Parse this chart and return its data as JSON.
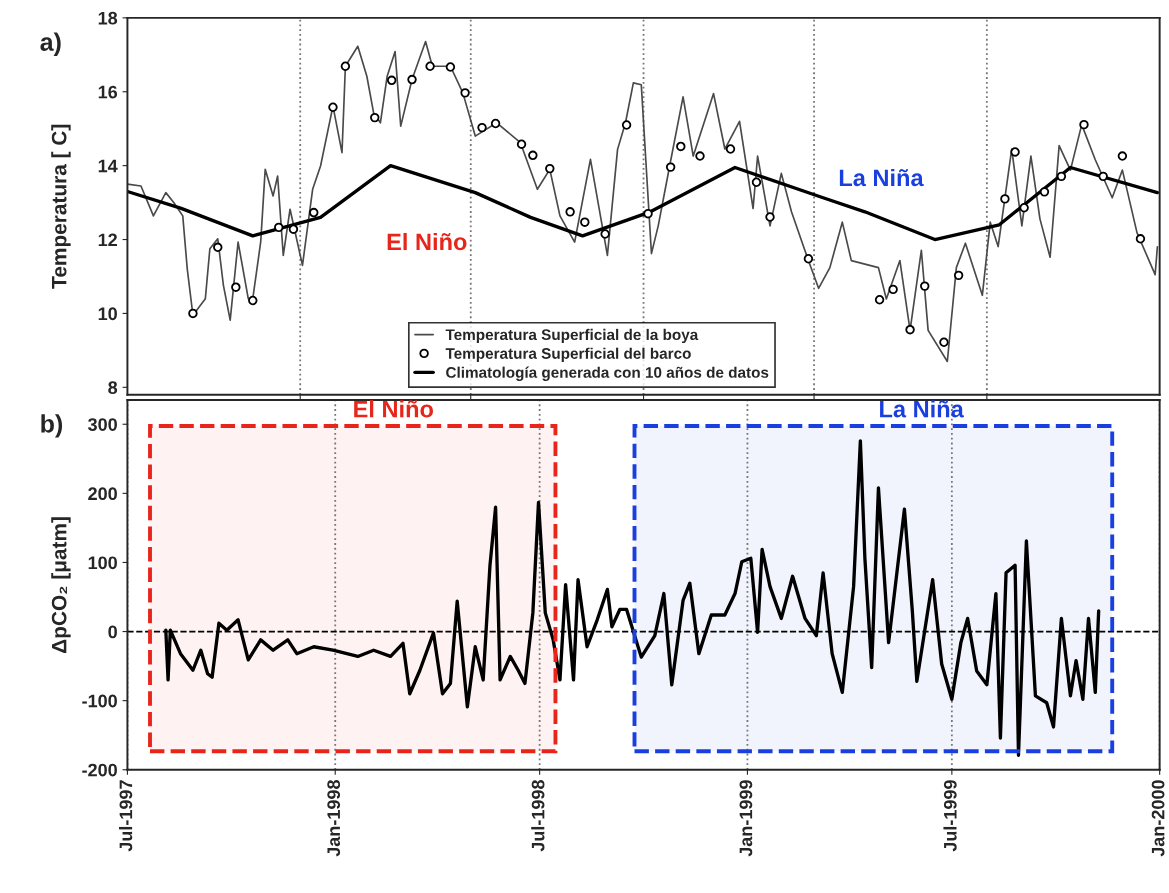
{
  "chart_data": [
    {
      "type": "line",
      "ylabel": "Temperatura [ C]",
      "annotations": [
        "a)",
        "El Niño",
        "La Niña"
      ],
      "xlim": [
        "1997-07-01",
        "2000-01-01"
      ],
      "ylim": [
        7.8,
        18
      ],
      "yticks": [
        8,
        10,
        12,
        14,
        16,
        18
      ],
      "xticks": [
        {
          "value": "1997-12-01",
          "label": null
        },
        {
          "value": "1998-05-01",
          "label": null
        },
        {
          "value": "1998-10-01",
          "label": null
        },
        {
          "value": "1999-03-01",
          "label": null
        },
        {
          "value": "1999-08-01",
          "label": null
        }
      ],
      "tick_labels": "y",
      "grid": "x",
      "legend": "bottom",
      "series": [
        {
          "name": "Temperatura Superficial de la boya",
          "color": "#4a4a4a",
          "x": [
            "1997-07-01",
            "1997-07-13",
            "1997-07-24",
            "1997-08-04",
            "1997-08-11",
            "1997-08-19",
            "1997-08-23",
            "1997-08-28",
            "1997-09-08",
            "1997-09-12",
            "1997-09-19",
            "1997-09-24",
            "1997-09-30",
            "1997-10-07",
            "1997-10-16",
            "1997-10-20",
            "1997-10-27",
            "1997-10-31",
            "1997-11-07",
            "1997-11-11",
            "1997-11-16",
            "1997-11-22",
            "1997-12-03",
            "1997-12-12",
            "1997-12-19",
            "1997-12-30",
            "1998-01-07",
            "1998-01-10",
            "1998-01-21",
            "1998-01-29",
            "1998-02-04",
            "1998-02-10",
            "1998-02-16",
            "1998-02-23",
            "1998-02-28",
            "1998-03-10",
            "1998-03-22",
            "1998-03-28",
            "1998-04-13",
            "1998-04-24",
            "1998-05-05",
            "1998-05-24",
            "1998-06-14",
            "1998-06-29",
            "1998-07-10",
            "1998-07-19",
            "1998-08-01",
            "1998-08-15",
            "1998-08-30",
            "1998-09-08",
            "1998-09-15",
            "1998-09-22",
            "1998-09-29",
            "1998-10-08",
            "1998-10-14",
            "1998-10-24",
            "1998-11-05",
            "1998-11-14",
            "1998-12-02",
            "1998-12-12",
            "1998-12-25",
            "1999-01-06",
            "1999-01-10",
            "1999-01-21",
            "1999-01-31",
            "1999-02-09",
            "1999-02-24",
            "1999-03-05",
            "1999-03-15",
            "1999-03-26",
            "1999-04-03",
            "1999-04-27",
            "1999-05-04",
            "1999-05-16",
            "1999-05-25",
            "1999-06-04",
            "1999-06-10",
            "1999-06-27",
            "1999-07-05",
            "1999-07-13",
            "1999-07-28",
            "1999-08-04",
            "1999-08-11",
            "1999-08-23",
            "1999-09-01",
            "1999-09-09",
            "1999-09-17",
            "1999-09-26",
            "1999-10-04",
            "1999-10-14",
            "1999-10-24",
            "1999-11-05",
            "1999-11-20",
            "1999-11-29",
            "1999-12-12",
            "1999-12-28",
            "1999-12-30"
          ],
          "values": [
            13.5,
            13.45,
            12.64,
            13.27,
            13.0,
            12.64,
            11.2,
            9.95,
            10.4,
            11.75,
            12.02,
            10.76,
            9.82,
            11.93,
            10.4,
            10.4,
            11.93,
            13.9,
            13.18,
            13.72,
            11.57,
            12.82,
            11.3,
            13.36,
            13.99,
            15.61,
            14.35,
            16.69,
            17.23,
            16.42,
            15.43,
            15.16,
            16.42,
            17.09,
            15.07,
            16.33,
            17.36,
            16.69,
            16.69,
            15.97,
            14.8,
            15.16,
            14.62,
            13.36,
            13.9,
            12.64,
            11.93,
            14.17,
            11.57,
            14.44,
            15.16,
            16.24,
            16.19,
            11.62,
            12.37,
            13.97,
            15.86,
            14.26,
            15.95,
            14.45,
            15.2,
            12.84,
            14.26,
            12.37,
            13.79,
            12.75,
            11.43,
            10.68,
            11.24,
            12.47,
            11.43,
            11.24,
            10.39,
            11.43,
            9.54,
            11.71,
            9.54,
            8.7,
            11.24,
            11.9,
            10.49,
            12.47,
            11.81,
            14.45,
            12.37,
            14.26,
            12.56,
            11.52,
            14.54,
            13.88,
            15.11,
            14.16,
            13.13,
            13.88,
            12.18,
            11.05,
            11.8
          ]
        },
        {
          "name": "Temperatura Superficial del barco",
          "type": "scatter",
          "marker": "circle",
          "color": "#000000",
          "x": [
            "1997-08-28",
            "1997-09-19",
            "1997-10-05",
            "1997-10-20",
            "1997-11-12",
            "1997-11-25",
            "1997-12-13",
            "1997-12-30",
            "1998-01-10",
            "1998-02-05",
            "1998-02-20",
            "1998-03-10",
            "1998-03-26",
            "1998-04-13",
            "1998-04-26",
            "1998-05-11",
            "1998-05-23",
            "1998-06-15",
            "1998-06-25",
            "1998-07-10",
            "1998-07-28",
            "1998-08-10",
            "1998-08-28",
            "1998-09-16",
            "1998-10-05",
            "1998-10-25",
            "1998-11-03",
            "1998-11-20",
            "1998-12-17",
            "1999-01-09",
            "1999-01-21",
            "1999-02-24",
            "1999-04-28",
            "1999-05-10",
            "1999-05-25",
            "1999-06-07",
            "1999-06-24",
            "1999-07-07",
            "1999-08-17",
            "1999-08-26",
            "1999-09-03",
            "1999-09-21",
            "1999-10-06",
            "1999-10-26",
            "1999-11-12",
            "1999-11-29",
            "1999-12-15"
          ],
          "values": [
            10.0,
            11.79,
            10.71,
            10.35,
            12.33,
            12.28,
            12.73,
            15.58,
            16.69,
            15.3,
            16.31,
            16.33,
            16.69,
            16.67,
            15.97,
            15.03,
            15.14,
            14.58,
            14.28,
            13.92,
            12.75,
            12.47,
            12.15,
            15.1,
            12.7,
            13.96,
            14.52,
            14.26,
            14.45,
            13.55,
            12.61,
            11.48,
            10.37,
            10.65,
            9.56,
            10.74,
            9.22,
            11.03,
            13.1,
            14.37,
            12.86,
            13.29,
            13.71,
            15.11,
            13.71,
            14.26,
            12.02
          ]
        },
        {
          "name": "Climatología generada con 10 años de datos",
          "color": "#000000",
          "x": [
            "1997-07-01",
            "1997-08-17",
            "1997-10-20",
            "1997-12-19",
            "1998-02-19",
            "1998-05-05",
            "1998-06-23",
            "1998-08-08",
            "1998-10-07",
            "1998-12-21",
            "1999-03-09",
            "1999-04-15",
            "1999-06-16",
            "1999-08-12",
            "1999-10-14",
            "1999-12-30"
          ],
          "values": [
            13.3,
            12.85,
            12.1,
            12.6,
            14.0,
            13.27,
            12.6,
            12.1,
            12.75,
            13.95,
            13.13,
            12.75,
            12.0,
            12.4,
            13.95,
            13.27
          ]
        }
      ]
    },
    {
      "type": "line",
      "ylabel": "ΔpCO₂ [μatm]",
      "annotations": [
        "b)"
      ],
      "xlim": [
        "1997-07-01",
        "2000-01-01"
      ],
      "ylim": [
        -200,
        335
      ],
      "yticks": [
        -200,
        -100,
        0,
        100,
        200,
        300
      ],
      "xticks": [
        {
          "value": "1997-07-01",
          "label": "Jul-1997"
        },
        {
          "value": "1998-01-01",
          "label": "Jan-1998"
        },
        {
          "value": "1998-07-01",
          "label": "Jul-1998"
        },
        {
          "value": "1999-01-01",
          "label": "Jan-1999"
        },
        {
          "value": "1999-07-01",
          "label": "Jul-1999"
        },
        {
          "value": "2000-01-01",
          "label": "Jan-2000"
        }
      ],
      "grid": "x",
      "ref_lines": [
        {
          "axis": "y",
          "value": 0,
          "color": "#000000",
          "line_style": "dashed"
        }
      ],
      "bands": [
        {
          "axis": "x",
          "from": "1997-07-21",
          "to": "1998-07-15",
          "label": "El Niño",
          "color": "#e8251b"
        },
        {
          "axis": "x",
          "from": "1998-09-23",
          "to": "1999-11-20",
          "label": "La Niña",
          "color": "#1a3fe0"
        }
      ],
      "series": [
        {
          "color": "#000000",
          "x": [
            "1997-08-04",
            "1997-08-06",
            "1997-08-08",
            "1997-08-17",
            "1997-08-28",
            "1997-09-04",
            "1997-09-10",
            "1997-09-14",
            "1997-09-20",
            "1997-09-27",
            "1997-10-07",
            "1997-10-16",
            "1997-10-27",
            "1997-11-07",
            "1997-11-20",
            "1997-11-28",
            "1997-12-13",
            "1997-12-30",
            "1998-01-21",
            "1998-02-04",
            "1998-02-19",
            "1998-03-02",
            "1998-03-08",
            "1998-03-17",
            "1998-03-29",
            "1998-04-06",
            "1998-04-13",
            "1998-04-19",
            "1998-04-28",
            "1998-05-05",
            "1998-05-12",
            "1998-05-18",
            "1998-05-23",
            "1998-05-27",
            "1998-06-05",
            "1998-06-12",
            "1998-06-18",
            "1998-06-25",
            "1998-06-30",
            "1998-07-06",
            "1998-07-13",
            "1998-07-19",
            "1998-07-24",
            "1998-07-31",
            "1998-08-04",
            "1998-08-12",
            "1998-08-21",
            "1998-08-30",
            "1998-09-03",
            "1998-09-10",
            "1998-09-16",
            "1998-09-29",
            "1998-10-11",
            "1998-10-19",
            "1998-10-26",
            "1998-11-05",
            "1998-11-11",
            "1998-11-19",
            "1998-11-30",
            "1998-12-12",
            "1998-12-21",
            "1998-12-27",
            "1999-01-04",
            "1999-01-10",
            "1999-01-14",
            "1999-01-21",
            "1999-01-31",
            "1999-02-10",
            "1999-02-21",
            "1999-03-03",
            "1999-03-09",
            "1999-03-17",
            "1999-03-26",
            "1999-04-05",
            "1999-04-11",
            "1999-04-15",
            "1999-04-21",
            "1999-04-27",
            "1999-05-06",
            "1999-05-20",
            "1999-05-27",
            "1999-05-31",
            "1999-06-14",
            "1999-06-22",
            "1999-07-01",
            "1999-07-09",
            "1999-07-15",
            "1999-07-23",
            "1999-08-01",
            "1999-08-09",
            "1999-08-13",
            "1999-08-18",
            "1999-08-26",
            "1999-08-29",
            "1999-09-05",
            "1999-09-13",
            "1999-09-23",
            "1999-09-29",
            "1999-10-06",
            "1999-10-14",
            "1999-10-19",
            "1999-10-25",
            "1999-10-30",
            "1999-11-05",
            "1999-11-08"
          ],
          "values": [
            2,
            -70,
            2,
            -32,
            -56,
            -27,
            -61,
            -66,
            12,
            2,
            17,
            -41,
            -12,
            -27,
            -12,
            -32,
            -22,
            -27,
            -36,
            -27,
            -36,
            -17,
            -90,
            -56,
            -2,
            -90,
            -75,
            44,
            -109,
            -22,
            -70,
            95,
            180,
            -70,
            -36,
            -56,
            -75,
            27,
            187,
            27,
            -12,
            -70,
            68,
            -70,
            75,
            -22,
            17,
            61,
            7,
            32,
            32,
            -37,
            -6,
            55,
            -77,
            45,
            70,
            -32,
            24,
            24,
            55,
            101,
            106,
            -1,
            119,
            65,
            19,
            80,
            19,
            -6,
            85,
            -32,
            -88,
            65,
            276,
            106,
            -52,
            208,
            -16,
            177,
            30,
            -72,
            75,
            -47,
            -98,
            -16,
            19,
            -57,
            -77,
            55,
            -154,
            85,
            96,
            -179,
            131,
            -93,
            -103,
            -138,
            19,
            -93,
            -42,
            -98,
            19,
            -88,
            30
          ]
        }
      ]
    }
  ]
}
